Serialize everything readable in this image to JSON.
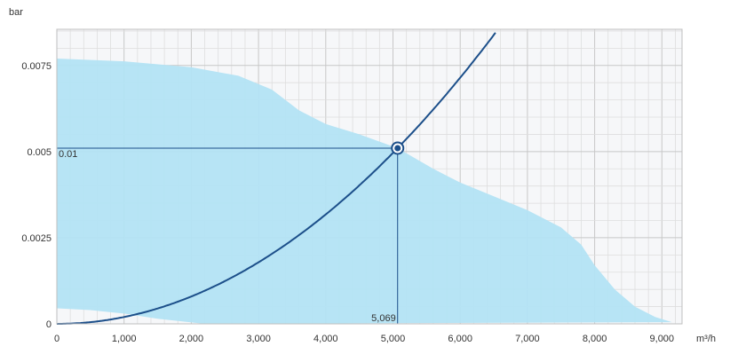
{
  "chart_data": {
    "type": "line",
    "x_unit": "m³/h",
    "y_unit": "bar",
    "xlim": [
      0,
      9300
    ],
    "ylim": [
      0,
      0.00855
    ],
    "grid": true,
    "x_ticks": [
      0,
      1000,
      2000,
      3000,
      4000,
      5000,
      6000,
      7000,
      8000,
      9000
    ],
    "x_tick_labels": [
      "0",
      "1,000",
      "2,000",
      "3,000",
      "4,000",
      "5,000",
      "6,000",
      "7,000",
      "8,000",
      "9,000"
    ],
    "y_ticks": [
      0,
      0.0025,
      0.005,
      0.0075
    ],
    "y_tick_labels": [
      "0",
      "0.0025",
      "0.005",
      "0.0075"
    ],
    "operating_range": {
      "upper": [
        [
          0,
          0.0077
        ],
        [
          1000,
          0.00762
        ],
        [
          2000,
          0.00745
        ],
        [
          2700,
          0.0072
        ],
        [
          3200,
          0.0068
        ],
        [
          3600,
          0.0062
        ],
        [
          4000,
          0.0058
        ],
        [
          4500,
          0.0055
        ],
        [
          5069,
          0.0051
        ],
        [
          5600,
          0.0045
        ],
        [
          6000,
          0.0041
        ],
        [
          6500,
          0.0037
        ],
        [
          7000,
          0.0033
        ],
        [
          7500,
          0.0028
        ],
        [
          7800,
          0.0023
        ],
        [
          8000,
          0.0017
        ],
        [
          8300,
          0.001
        ],
        [
          8600,
          0.0005
        ],
        [
          8900,
          0.0002
        ],
        [
          9150,
          5e-05
        ]
      ],
      "lower": [
        [
          9150,
          5e-05
        ],
        [
          2200,
          0.0
        ],
        [
          1500,
          0.00015
        ],
        [
          1000,
          0.0003
        ],
        [
          500,
          0.0004
        ],
        [
          0,
          0.00045
        ]
      ],
      "color": "#b3e3f4"
    },
    "system_curve": {
      "x": [
        0,
        500,
        1000,
        1500,
        2000,
        2500,
        3000,
        3500,
        4000,
        4500,
        5000,
        5500,
        6000,
        6530
      ],
      "y": [
        0,
        5e-05,
        0.0002,
        0.00045,
        0.0008,
        0.00124,
        0.00178,
        0.00243,
        0.00318,
        0.00402,
        0.00496,
        0.006,
        0.00715,
        0.0084
      ],
      "color": "#1c4f8a"
    },
    "operating_point": {
      "x": 5069,
      "y": 0.0051,
      "x_label": "5,069",
      "y_label": "0.01"
    },
    "colors": {
      "grid": "#d6d6d6",
      "plot_bg": "#f6f7f9",
      "curve": "#1c4f8a",
      "area": "#b3e3f4"
    }
  }
}
